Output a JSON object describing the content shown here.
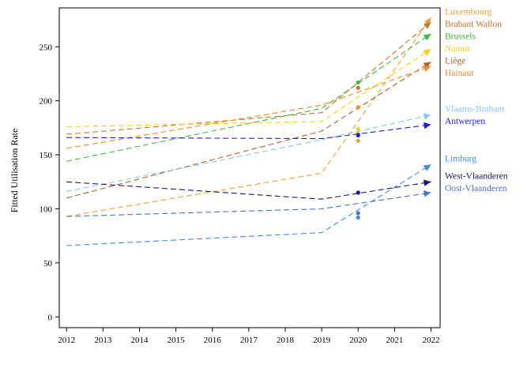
{
  "chart_data": {
    "type": "line",
    "ylabel": "Fitted Utilisation Rate",
    "xlabel": "",
    "x_ticks": [
      "2012",
      "2013",
      "2014",
      "2015",
      "2016",
      "2017",
      "2018",
      "2019",
      "2020",
      "2021",
      "2022"
    ],
    "y_ticks": [
      "0",
      "50",
      "100",
      "150",
      "200",
      "250"
    ],
    "xlim": [
      2011.8,
      2022.25
    ],
    "ylim": [
      -10,
      286
    ],
    "grid": false,
    "legend_placement": "right, labels at line ends",
    "series": [
      {
        "name": "Luxembourg",
        "color": "#e8a33a",
        "x": [
          2012,
          2019,
          2022
        ],
        "values": [
          93,
          133,
          277
        ],
        "obs2020": 163
      },
      {
        "name": "Brabant Wallon",
        "color": "#c8742a",
        "x": [
          2012,
          2019,
          2022
        ],
        "values": [
          169,
          189,
          273
        ],
        "obs2020": 212
      },
      {
        "name": "Brussels",
        "color": "#3dba3d",
        "x": [
          2012,
          2019,
          2022
        ],
        "values": [
          144,
          193,
          262
        ],
        "obs2020": 217
      },
      {
        "name": "Namur",
        "color": "#f2cf1d",
        "x": [
          2012,
          2019,
          2022
        ],
        "values": [
          176,
          181,
          248
        ],
        "obs2020": 174
      },
      {
        "name": "Liège",
        "color": "#b0602f",
        "x": [
          2012,
          2019,
          2022
        ],
        "values": [
          110,
          172,
          236
        ],
        "obs2020": 169
      },
      {
        "name": "Hainaut",
        "color": "#ee8a2a",
        "x": [
          2012,
          2019,
          2022
        ],
        "values": [
          156,
          196,
          232
        ],
        "obs2020": 194
      },
      {
        "name": "Vlaams-Brabant",
        "color": "#86c6ee",
        "x": [
          2012,
          2019,
          2022
        ],
        "values": [
          116,
          164,
          187
        ],
        "obs2020": 168
      },
      {
        "name": "Antwerpen",
        "color": "#1f1fd8",
        "x": [
          2012,
          2019,
          2022
        ],
        "values": [
          166,
          165,
          178
        ],
        "obs2020": 168
      },
      {
        "name": "Limburg",
        "color": "#3a8ee0",
        "x": [
          2012,
          2019,
          2022
        ],
        "values": [
          66,
          78,
          141
        ],
        "obs2020": 92
      },
      {
        "name": "West-Vlaanderen",
        "color": "#15157a",
        "x": [
          2012,
          2019,
          2022
        ],
        "values": [
          125,
          109,
          125
        ],
        "obs2020": 115
      },
      {
        "name": "Oost-Vlaanderen",
        "color": "#4a70c8",
        "x": [
          2012,
          2019,
          2022
        ],
        "values": [
          93,
          100,
          115
        ],
        "obs2020": 96
      }
    ]
  }
}
